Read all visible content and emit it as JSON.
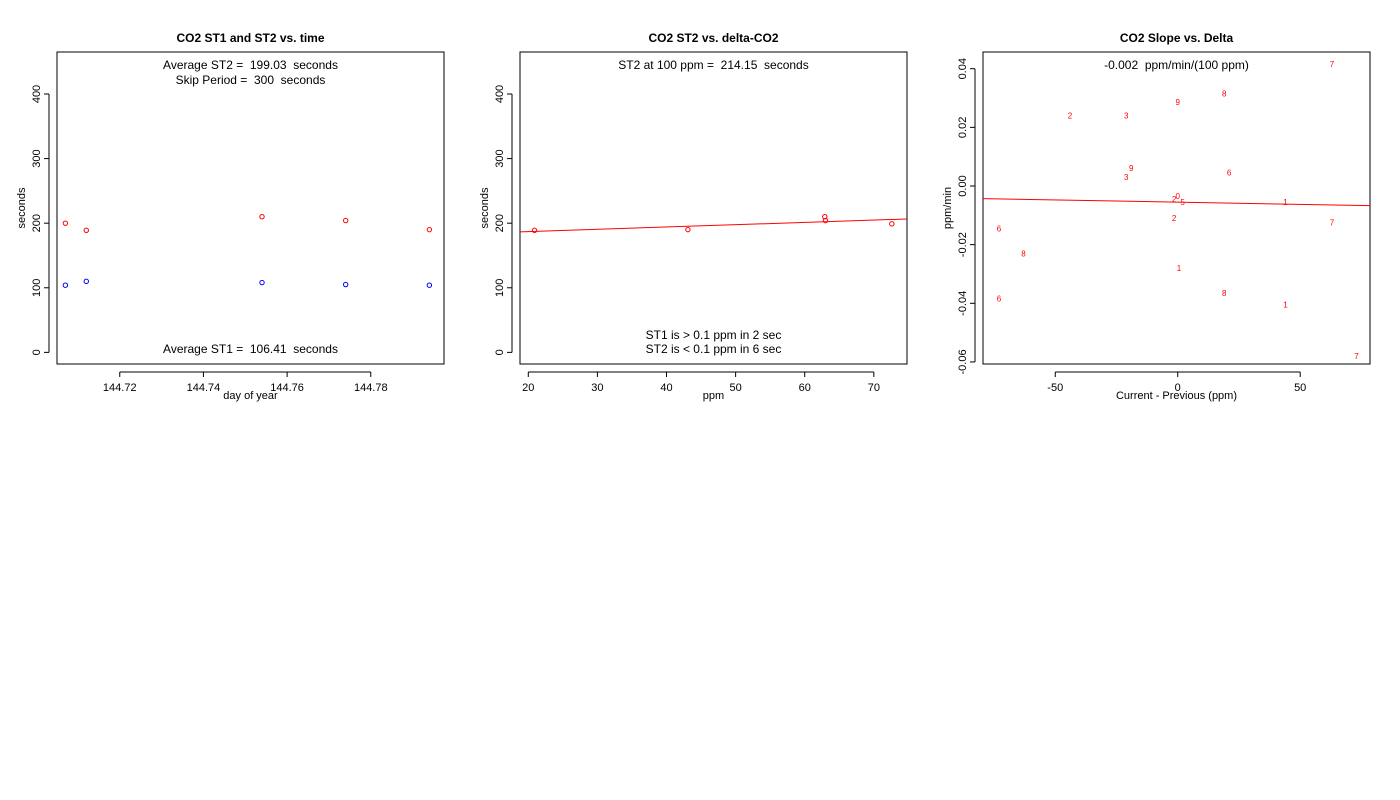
{
  "chart_data": [
    {
      "type": "scatter",
      "title": "CO2 ST1 and ST2 vs. time",
      "xlabel": "day of year",
      "ylabel": "seconds",
      "xlim": [
        144.705,
        144.7975
      ],
      "ylim": [
        -18,
        465
      ],
      "xticks": [
        144.72,
        144.74,
        144.76,
        144.78
      ],
      "xtick_labels": [
        "144.72",
        "144.74",
        "144.76",
        "144.78"
      ],
      "yticks": [
        0,
        100,
        200,
        300,
        400
      ],
      "ytick_labels": [
        "0",
        "100",
        "200",
        "300",
        "400"
      ],
      "grid": false,
      "series": [
        {
          "color": "#ff0000",
          "marker": "circle",
          "x": [
            144.707,
            144.712,
            144.754,
            144.774,
            144.794
          ],
          "y": [
            200,
            189,
            210,
            204,
            190
          ]
        },
        {
          "color": "#0000ff",
          "marker": "circle",
          "x": [
            144.707,
            144.712,
            144.754,
            144.774,
            144.794
          ],
          "y": [
            104,
            110,
            108,
            105,
            104
          ]
        }
      ],
      "annotations": [
        {
          "text": "Average ST2 =  199.03  seconds",
          "position": "top"
        },
        {
          "text": "Skip Period =  300  seconds",
          "position": "top"
        },
        {
          "text": "Average ST1 =  106.41  seconds",
          "position": "bottom"
        }
      ]
    },
    {
      "type": "scatter",
      "title": "CO2 ST2 vs. delta-CO2",
      "xlabel": "ppm",
      "ylabel": "seconds",
      "xlim": [
        18.8,
        74.8
      ],
      "ylim": [
        -18,
        465
      ],
      "xticks": [
        20,
        30,
        40,
        50,
        60,
        70
      ],
      "xtick_labels": [
        "20",
        "30",
        "40",
        "50",
        "60",
        "70"
      ],
      "yticks": [
        0,
        100,
        200,
        300,
        400
      ],
      "ytick_labels": [
        "0",
        "100",
        "200",
        "300",
        "400"
      ],
      "grid": false,
      "series": [
        {
          "color": "#ff0000",
          "marker": "circle",
          "x": [
            20.9,
            43.1,
            62.9,
            63.0,
            72.6
          ],
          "y": [
            189,
            190,
            210,
            204,
            199
          ]
        }
      ],
      "fit_line": {
        "color": "#ff0000",
        "x": [
          18.8,
          74.8
        ],
        "y": [
          186.5,
          206.5
        ]
      },
      "annotations": [
        {
          "text": "ST2 at 100 ppm =  214.15  seconds",
          "position": "top"
        },
        {
          "text": "ST1 is > 0.1 ppm in 2 sec",
          "position": "bottom"
        },
        {
          "text": "ST2 is < 0.1 ppm in 6 sec",
          "position": "bottom"
        }
      ]
    },
    {
      "type": "scatter",
      "title": "CO2 Slope vs. Delta",
      "xlabel": "Current - Previous (ppm)",
      "ylabel": "ppm/min",
      "xlim": [
        -79.5,
        78.5
      ],
      "ylim": [
        -0.0607,
        0.0457
      ],
      "xticks": [
        -50,
        0,
        50
      ],
      "xtick_labels": [
        "-50",
        "0",
        "50"
      ],
      "yticks": [
        -0.06,
        -0.04,
        -0.02,
        0.0,
        0.02,
        0.04
      ],
      "ytick_labels": [
        "-0.06",
        "-0.04",
        "-0.02",
        "0.00",
        "0.02",
        "0.04"
      ],
      "grid": false,
      "series": [
        {
          "color": "#ff0000",
          "marker": "text",
          "points": [
            {
              "x": 63,
              "y": 0.0416,
              "label": "7"
            },
            {
              "x": 19,
              "y": 0.0315,
              "label": "8"
            },
            {
              "x": 0,
              "y": 0.0285,
              "label": "9"
            },
            {
              "x": -44,
              "y": 0.024,
              "label": "2"
            },
            {
              "x": -21,
              "y": 0.024,
              "label": "3"
            },
            {
              "x": -19,
              "y": 0.006,
              "label": "9"
            },
            {
              "x": -21,
              "y": 0.003,
              "label": "3"
            },
            {
              "x": 21,
              "y": 0.0045,
              "label": "6"
            },
            {
              "x": 0,
              "y": -0.0035,
              "label": "0"
            },
            {
              "x": -1.5,
              "y": -0.0045,
              "label": "2"
            },
            {
              "x": 2,
              "y": -0.0055,
              "label": "5"
            },
            {
              "x": 44,
              "y": -0.0055,
              "label": "1"
            },
            {
              "x": -1.5,
              "y": -0.011,
              "label": "2"
            },
            {
              "x": 63,
              "y": -0.0125,
              "label": "7"
            },
            {
              "x": -73,
              "y": -0.0145,
              "label": "6"
            },
            {
              "x": -63,
              "y": -0.023,
              "label": "8"
            },
            {
              "x": 0.5,
              "y": -0.028,
              "label": "1"
            },
            {
              "x": 19,
              "y": -0.0365,
              "label": "8"
            },
            {
              "x": -73,
              "y": -0.0385,
              "label": "6"
            },
            {
              "x": 44,
              "y": -0.0405,
              "label": "1"
            },
            {
              "x": 73,
              "y": -0.058,
              "label": "7"
            }
          ]
        }
      ],
      "fit_line": {
        "color": "#ff0000",
        "x": [
          -79.5,
          78.5
        ],
        "y": [
          -0.0043,
          -0.0067
        ]
      },
      "annotations": [
        {
          "text": "-0.002  ppm/min/(100 ppm)",
          "position": "top"
        }
      ]
    }
  ]
}
